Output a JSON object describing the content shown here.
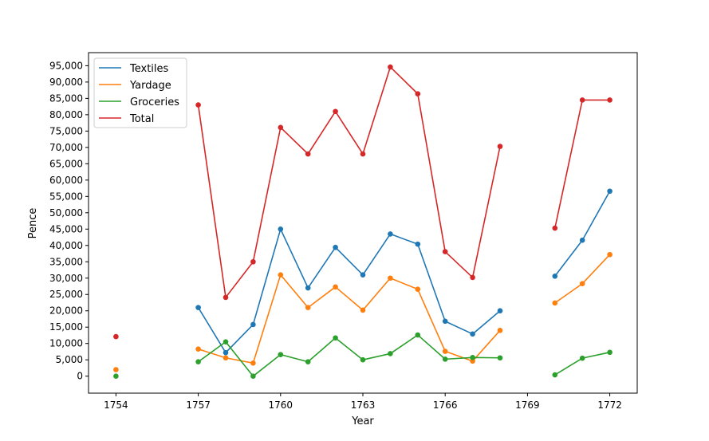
{
  "chart_data": {
    "type": "line",
    "title": "",
    "xlabel": "Year",
    "ylabel": "Pence",
    "xlim": [
      1753.0,
      1773.0
    ],
    "ylim": [
      -5200,
      99000
    ],
    "x_ticks": [
      1754,
      1757,
      1760,
      1763,
      1766,
      1769,
      1772
    ],
    "x_tick_labels": [
      "1754",
      "1757",
      "1760",
      "1763",
      "1766",
      "1769",
      "1772"
    ],
    "y_ticks": [
      0,
      5000,
      10000,
      15000,
      20000,
      25000,
      30000,
      35000,
      40000,
      45000,
      50000,
      55000,
      60000,
      65000,
      70000,
      75000,
      80000,
      85000,
      90000,
      95000
    ],
    "y_tick_labels": [
      "0",
      "5,000",
      "10,000",
      "15,000",
      "20,000",
      "25,000",
      "30,000",
      "35,000",
      "40,000",
      "45,000",
      "50,000",
      "55,000",
      "60,000",
      "65,000",
      "70,000",
      "75,000",
      "80,000",
      "85,000",
      "90,000",
      "95,000"
    ],
    "grid": false,
    "legend_position": "top-left",
    "x": [
      1754,
      1757,
      1758,
      1759,
      1760,
      1761,
      1762,
      1763,
      1764,
      1765,
      1766,
      1767,
      1768,
      1770,
      1771,
      1772
    ],
    "series": [
      {
        "name": "Textiles",
        "color": "#1f77b4",
        "values": [
          null,
          21000,
          7200,
          15800,
          45000,
          27000,
          39400,
          31000,
          43500,
          40400,
          16800,
          12900,
          20000,
          30600,
          41600,
          56600
        ]
      },
      {
        "name": "Yardage",
        "color": "#ff7f0e",
        "values": [
          2000,
          8300,
          5600,
          4000,
          31000,
          21000,
          27300,
          20200,
          30000,
          26600,
          7600,
          4600,
          14000,
          22400,
          28300,
          37200
        ]
      },
      {
        "name": "Groceries",
        "color": "#2ca02c",
        "values": [
          0,
          4400,
          10500,
          0,
          6600,
          4400,
          11700,
          5000,
          6900,
          12600,
          5200,
          5700,
          5600,
          400,
          5500,
          7300
        ]
      },
      {
        "name": "Total",
        "color": "#d62728",
        "values": [
          12100,
          83000,
          24100,
          35000,
          76100,
          68000,
          81000,
          68000,
          94600,
          86400,
          38100,
          30200,
          70300,
          45300,
          84500,
          84500
        ]
      }
    ]
  }
}
